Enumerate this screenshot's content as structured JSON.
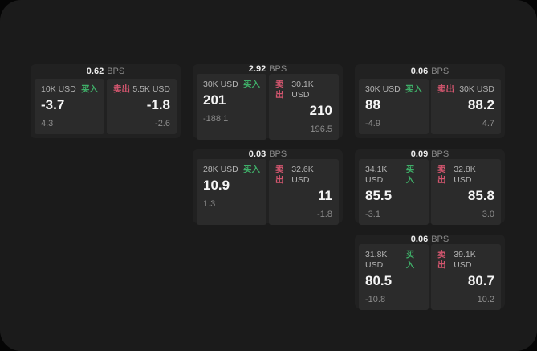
{
  "labels": {
    "bps": "BPS",
    "buy": "买入",
    "sell": "卖出"
  },
  "colors": {
    "background": "#050505",
    "panel": "#1b1b1b",
    "card": "#212121",
    "tile": "#2b2b2b",
    "buy_accent": "#3fae68",
    "sell_accent": "#d4566f"
  },
  "cards": [
    {
      "bps": "0.62",
      "buy": {
        "size": "10K USD",
        "price": "-3.7",
        "delta": "4.3"
      },
      "sell": {
        "size": "5.5K USD",
        "price": "-1.8",
        "delta": "-2.6"
      }
    },
    {
      "bps": "2.92",
      "buy": {
        "size": "30K USD",
        "price": "201",
        "delta": "-188.1"
      },
      "sell": {
        "size": "30.1K USD",
        "price": "210",
        "delta": "196.5"
      }
    },
    {
      "bps": "0.06",
      "buy": {
        "size": "30K USD",
        "price": "88",
        "delta": "-4.9"
      },
      "sell": {
        "size": "30K USD",
        "price": "88.2",
        "delta": "4.7"
      }
    },
    {
      "bps": "0.03",
      "buy": {
        "size": "28K USD",
        "price": "10.9",
        "delta": "1.3"
      },
      "sell": {
        "size": "32.6K USD",
        "price": "11",
        "delta": "-1.8"
      }
    },
    {
      "bps": "0.09",
      "buy": {
        "size": "34.1K USD",
        "price": "85.5",
        "delta": "-3.1"
      },
      "sell": {
        "size": "32.8K USD",
        "price": "85.8",
        "delta": "3.0"
      }
    },
    {
      "bps": "0.06",
      "buy": {
        "size": "31.8K USD",
        "price": "80.5",
        "delta": "-10.8"
      },
      "sell": {
        "size": "39.1K USD",
        "price": "80.7",
        "delta": "10.2"
      }
    }
  ]
}
